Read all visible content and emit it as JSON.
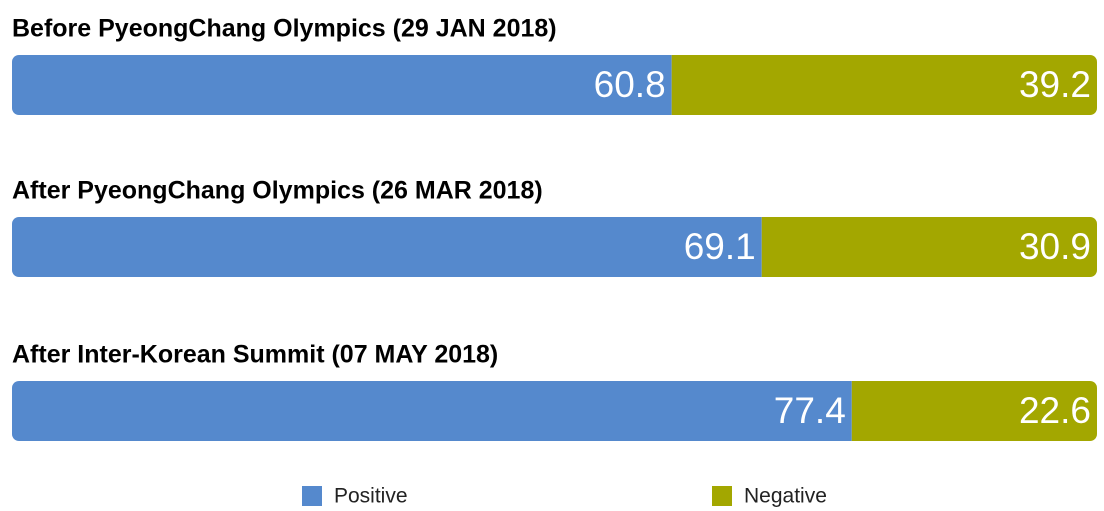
{
  "chart_data": {
    "type": "stacked-bar-horizontal",
    "categories": [
      "Before PyeongChang Olympics (29 JAN 2018)",
      "After PyeongChang Olympics (26 MAR 2018)",
      "After Inter-Korean Summit (07 MAY 2018)"
    ],
    "series": [
      {
        "name": "Positive",
        "color": "#5589cd",
        "values": [
          60.8,
          69.1,
          77.4
        ]
      },
      {
        "name": "Negative",
        "color": "#a3a700",
        "values": [
          39.2,
          30.9,
          22.6
        ]
      }
    ]
  }
}
